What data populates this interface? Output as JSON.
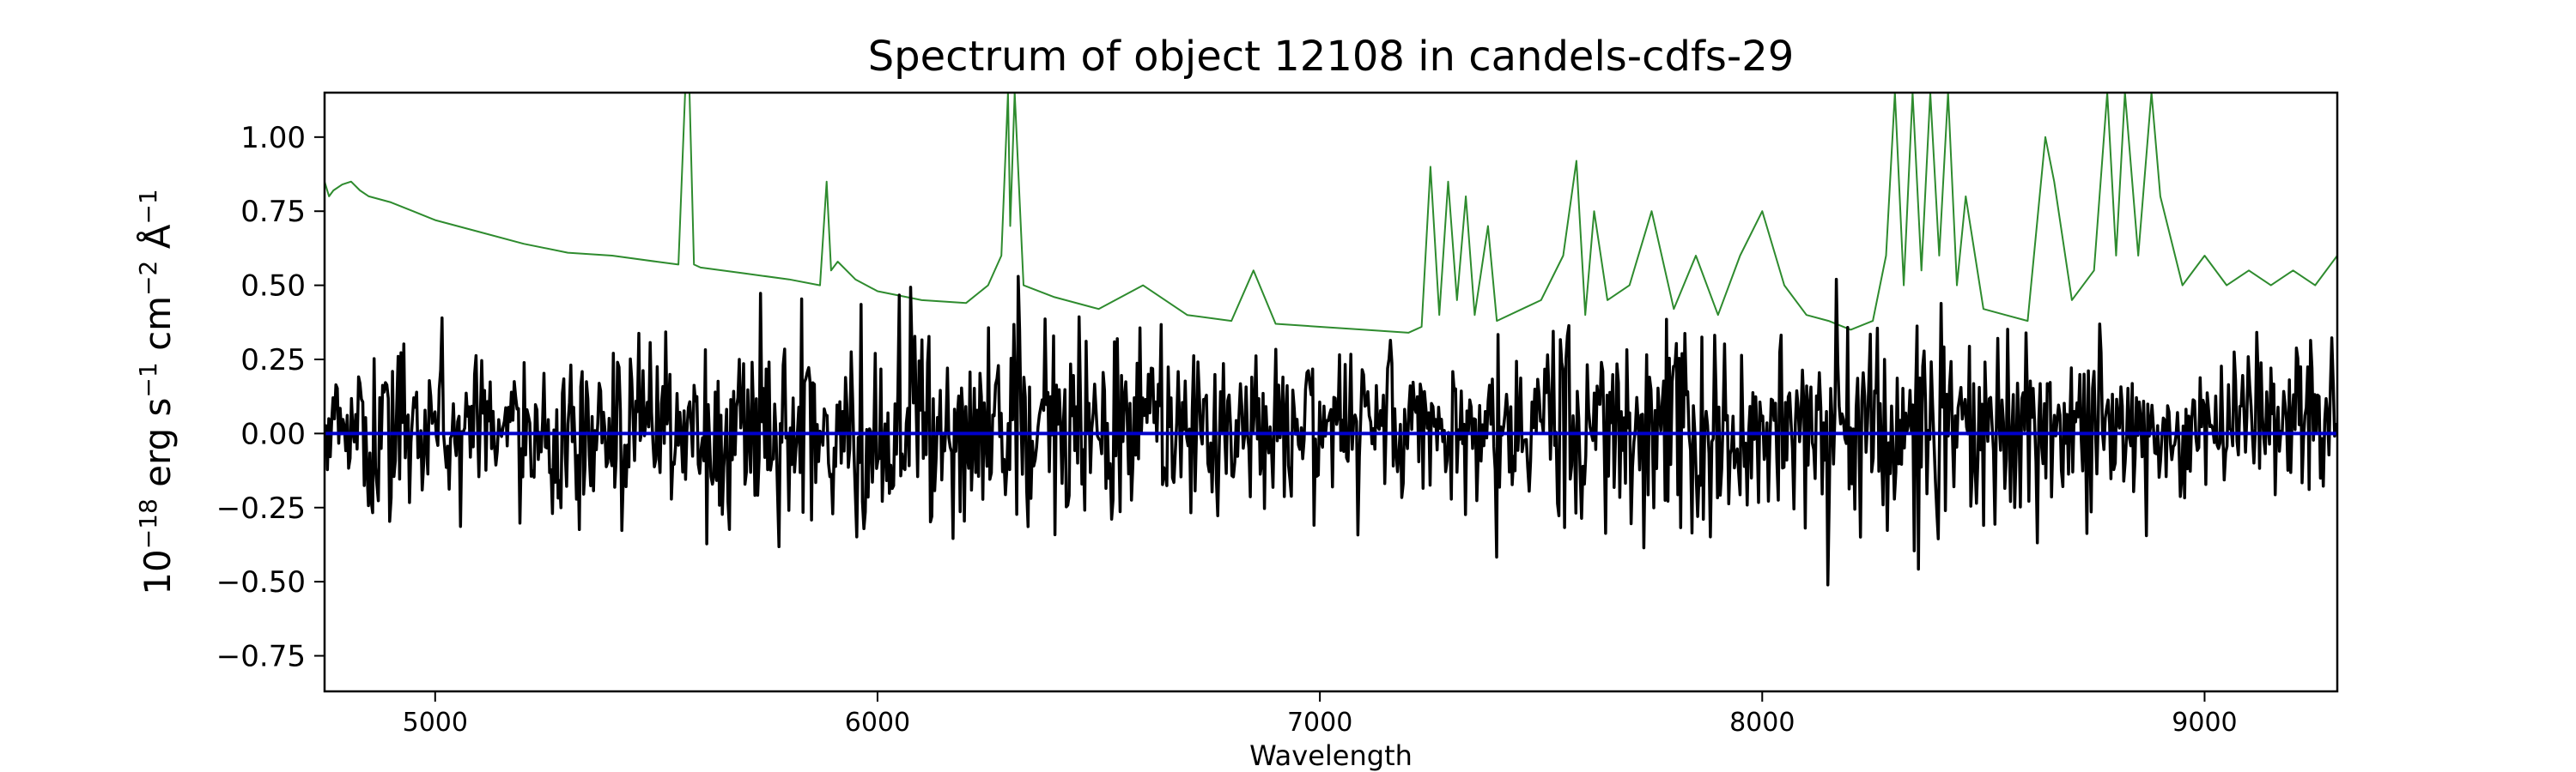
{
  "chart_data": {
    "type": "line",
    "title": "Spectrum of object 12108 in candels-cdfs-29",
    "xlabel": "Wavelength",
    "ylabel": {
      "base": "10",
      "exp1": "−18",
      "u1": " erg s",
      "exp2": "−1",
      "u2": " cm",
      "exp3": "−2",
      "u3": " Å",
      "exp4": "−1"
    },
    "xlim": [
      4750,
      9300
    ],
    "ylim": [
      -0.87,
      1.15
    ],
    "xticks": [
      5000,
      6000,
      7000,
      8000,
      9000
    ],
    "xtick_labels": [
      "5000",
      "6000",
      "7000",
      "8000",
      "9000"
    ],
    "yticks": [
      1.0,
      0.75,
      0.5,
      0.25,
      0.0,
      -0.25,
      -0.5,
      -0.75
    ],
    "ytick_labels": [
      "1.00",
      "0.75",
      "0.50",
      "0.25",
      "0.00",
      "−0.25",
      "−0.50",
      "−0.75"
    ],
    "grid": false,
    "series": [
      {
        "role": "error",
        "color": "#2e8b2e",
        "x": [
          4750,
          4760,
          4770,
          4790,
          4810,
          4830,
          4850,
          4900,
          4950,
          5000,
          5100,
          5200,
          5300,
          5400,
          5500,
          5550,
          5565,
          5575,
          5585,
          5600,
          5700,
          5800,
          5870,
          5885,
          5895,
          5910,
          5950,
          6000,
          6100,
          6200,
          6250,
          6280,
          6295,
          6300,
          6310,
          6330,
          6400,
          6500,
          6600,
          6700,
          6800,
          6850,
          6900,
          7000,
          7100,
          7200,
          7230,
          7250,
          7270,
          7290,
          7310,
          7330,
          7350,
          7380,
          7400,
          7500,
          7550,
          7580,
          7600,
          7620,
          7650,
          7700,
          7750,
          7800,
          7850,
          7900,
          7950,
          8000,
          8050,
          8100,
          8150,
          8200,
          8250,
          8280,
          8300,
          8320,
          8340,
          8360,
          8380,
          8400,
          8420,
          8440,
          8460,
          8500,
          8550,
          8600,
          8640,
          8660,
          8700,
          8750,
          8780,
          8800,
          8820,
          8850,
          8880,
          8900,
          8950,
          9000,
          9050,
          9100,
          9150,
          9200,
          9250,
          9300
        ],
        "y": [
          0.85,
          0.8,
          0.82,
          0.84,
          0.85,
          0.82,
          0.8,
          0.78,
          0.75,
          0.72,
          0.68,
          0.64,
          0.61,
          0.6,
          0.58,
          0.57,
          1.15,
          1.15,
          0.57,
          0.56,
          0.54,
          0.52,
          0.5,
          0.85,
          0.55,
          0.58,
          0.52,
          0.48,
          0.45,
          0.44,
          0.5,
          0.6,
          1.15,
          0.7,
          1.15,
          0.5,
          0.46,
          0.42,
          0.5,
          0.4,
          0.38,
          0.55,
          0.37,
          0.36,
          0.35,
          0.34,
          0.36,
          0.9,
          0.4,
          0.85,
          0.45,
          0.8,
          0.4,
          0.7,
          0.38,
          0.45,
          0.6,
          0.92,
          0.4,
          0.75,
          0.45,
          0.5,
          0.75,
          0.42,
          0.6,
          0.4,
          0.6,
          0.75,
          0.5,
          0.4,
          0.38,
          0.35,
          0.38,
          0.6,
          1.15,
          0.5,
          1.15,
          0.55,
          1.15,
          0.6,
          1.15,
          0.5,
          0.8,
          0.42,
          0.4,
          0.38,
          1.0,
          0.85,
          0.45,
          0.55,
          1.15,
          0.6,
          1.15,
          0.6,
          1.15,
          0.8,
          0.5,
          0.6,
          0.5,
          0.55,
          0.5,
          0.55,
          0.5,
          0.6
        ]
      },
      {
        "role": "continuum",
        "color": "#0000cc",
        "x": [
          4750,
          9300
        ],
        "y": [
          0.0,
          0.0
        ]
      }
    ],
    "flux_seed": 12108,
    "flux_color": "#000000"
  }
}
